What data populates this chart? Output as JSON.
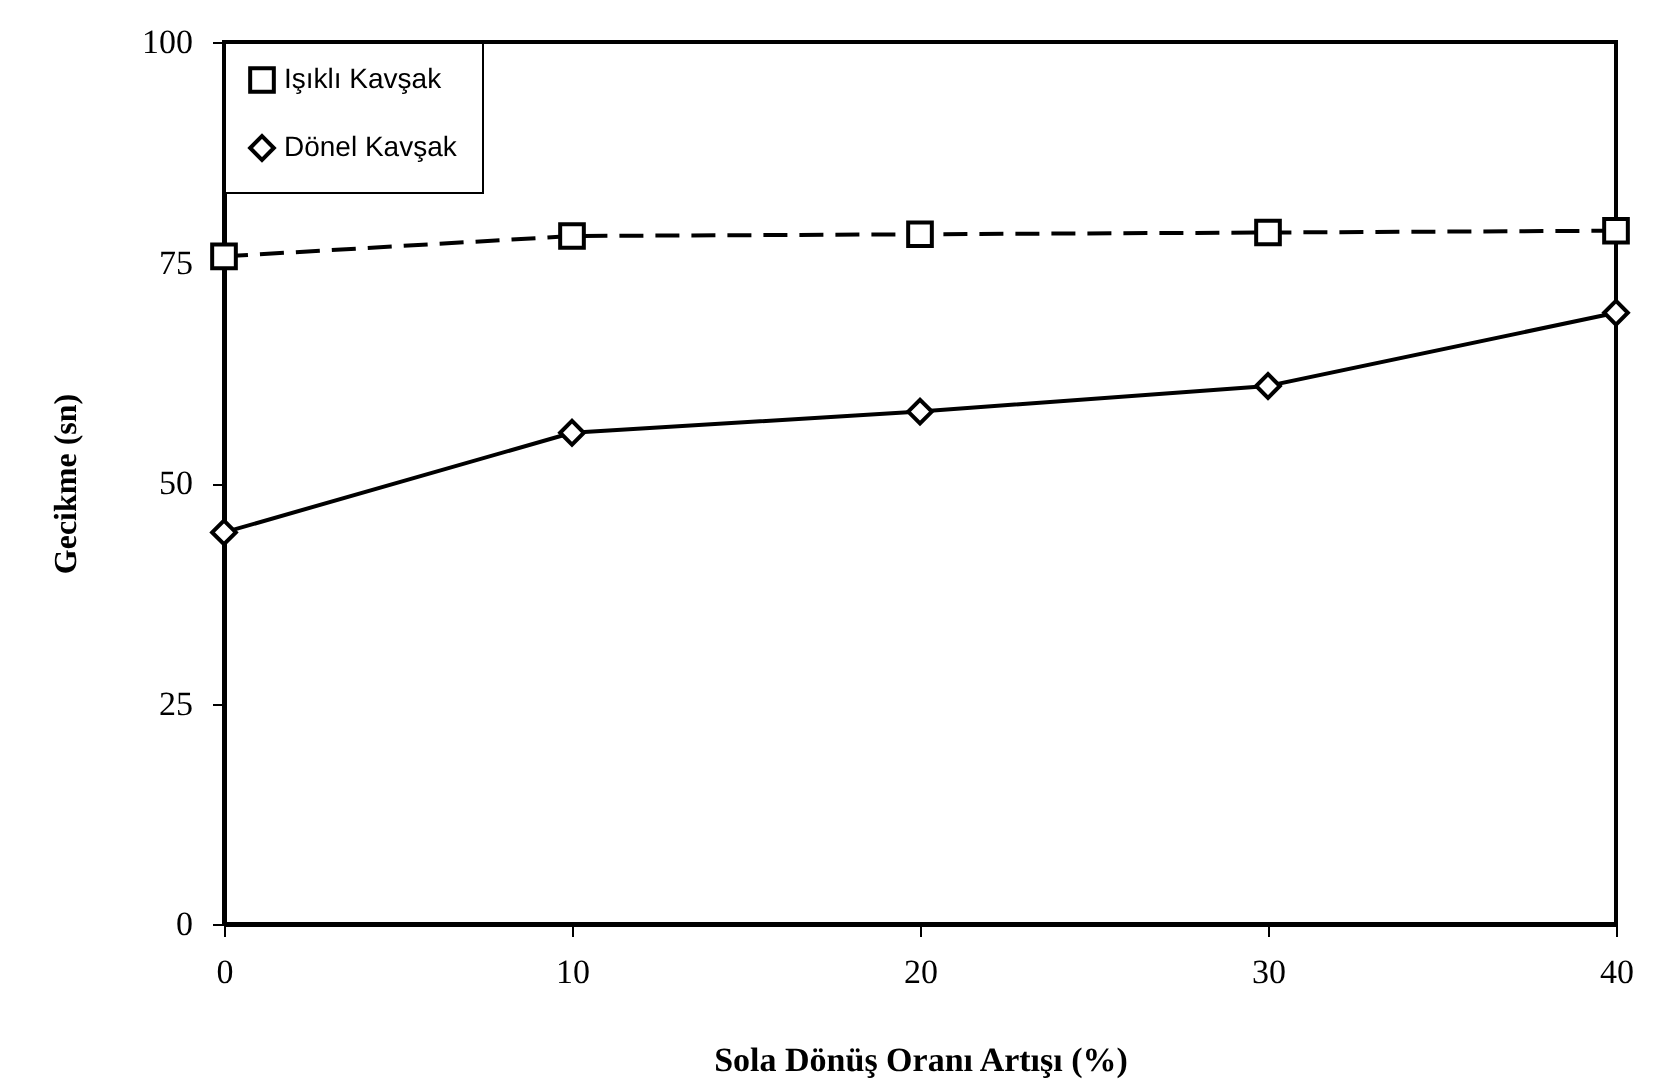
{
  "chart_data": {
    "type": "line",
    "xlabel": "Sola Dönüş Oranı Artışı (%)",
    "ylabel": "Gecikme (sn)",
    "x": [
      0,
      10,
      20,
      30,
      40
    ],
    "series": [
      {
        "name": "Işıklı Kavşak",
        "color": "#000000",
        "marker": "square",
        "line_style": "dashed",
        "values": [
          75.7,
          78.0,
          78.2,
          78.4,
          78.6
        ]
      },
      {
        "name": "Dönel Kavşak",
        "color": "#000000",
        "marker": "diamond",
        "line_style": "solid",
        "values": [
          44.4,
          55.7,
          58.1,
          61.0,
          69.3
        ]
      }
    ],
    "xlim": [
      0,
      40
    ],
    "xticks": [
      0,
      10,
      20,
      30,
      40
    ],
    "ylim": [
      0,
      100
    ],
    "yticks": [
      0,
      25,
      50,
      75,
      100
    ],
    "grid": false,
    "legend": "top left"
  }
}
